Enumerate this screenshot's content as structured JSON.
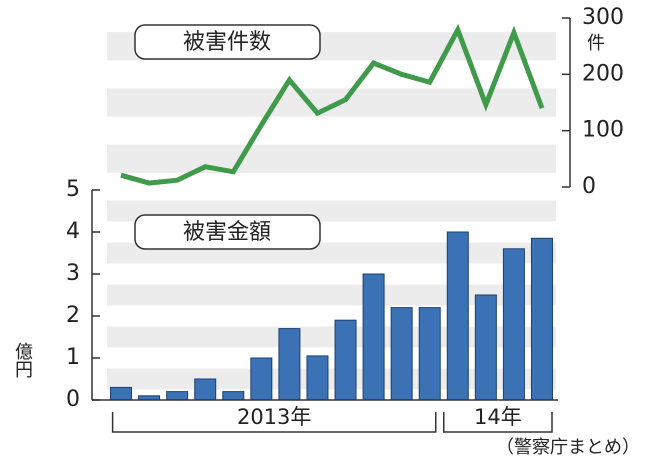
{
  "chart_data": [
    {
      "type": "line",
      "title": "被害件数",
      "y_unit": "件",
      "axis_side": "right",
      "categories": [
        null,
        null,
        null,
        null,
        null,
        null,
        null,
        null,
        null,
        null,
        null,
        null,
        null,
        null,
        null,
        null
      ],
      "series": [
        {
          "color": "#3f9a4a",
          "values": [
            21,
            7,
            12,
            36,
            27,
            110,
            190,
            131,
            155,
            220,
            200,
            186,
            279,
            146,
            274,
            140
          ]
        }
      ],
      "ylim": [
        0,
        300
      ],
      "yticks": [
        0,
        100,
        200,
        300
      ],
      "grid": true
    },
    {
      "type": "bar",
      "title": "被害金額",
      "y_unit": "億円",
      "axis_side": "left",
      "categories": [
        null,
        null,
        null,
        null,
        null,
        null,
        null,
        null,
        null,
        null,
        null,
        null,
        null,
        null,
        null,
        null
      ],
      "series": [
        {
          "color": "#3b72b5",
          "values": [
            0.3,
            0.1,
            0.2,
            0.5,
            0.2,
            1.0,
            1.7,
            1.05,
            1.9,
            3.0,
            2.2,
            2.2,
            4.0,
            2.5,
            3.6,
            3.85
          ]
        }
      ],
      "ylim": [
        0,
        5
      ],
      "yticks": [
        0,
        1,
        2,
        3,
        4,
        5
      ],
      "grid": true,
      "annotations": [
        "2013年",
        "14年",
        "（警察庁まとめ）"
      ]
    }
  ]
}
